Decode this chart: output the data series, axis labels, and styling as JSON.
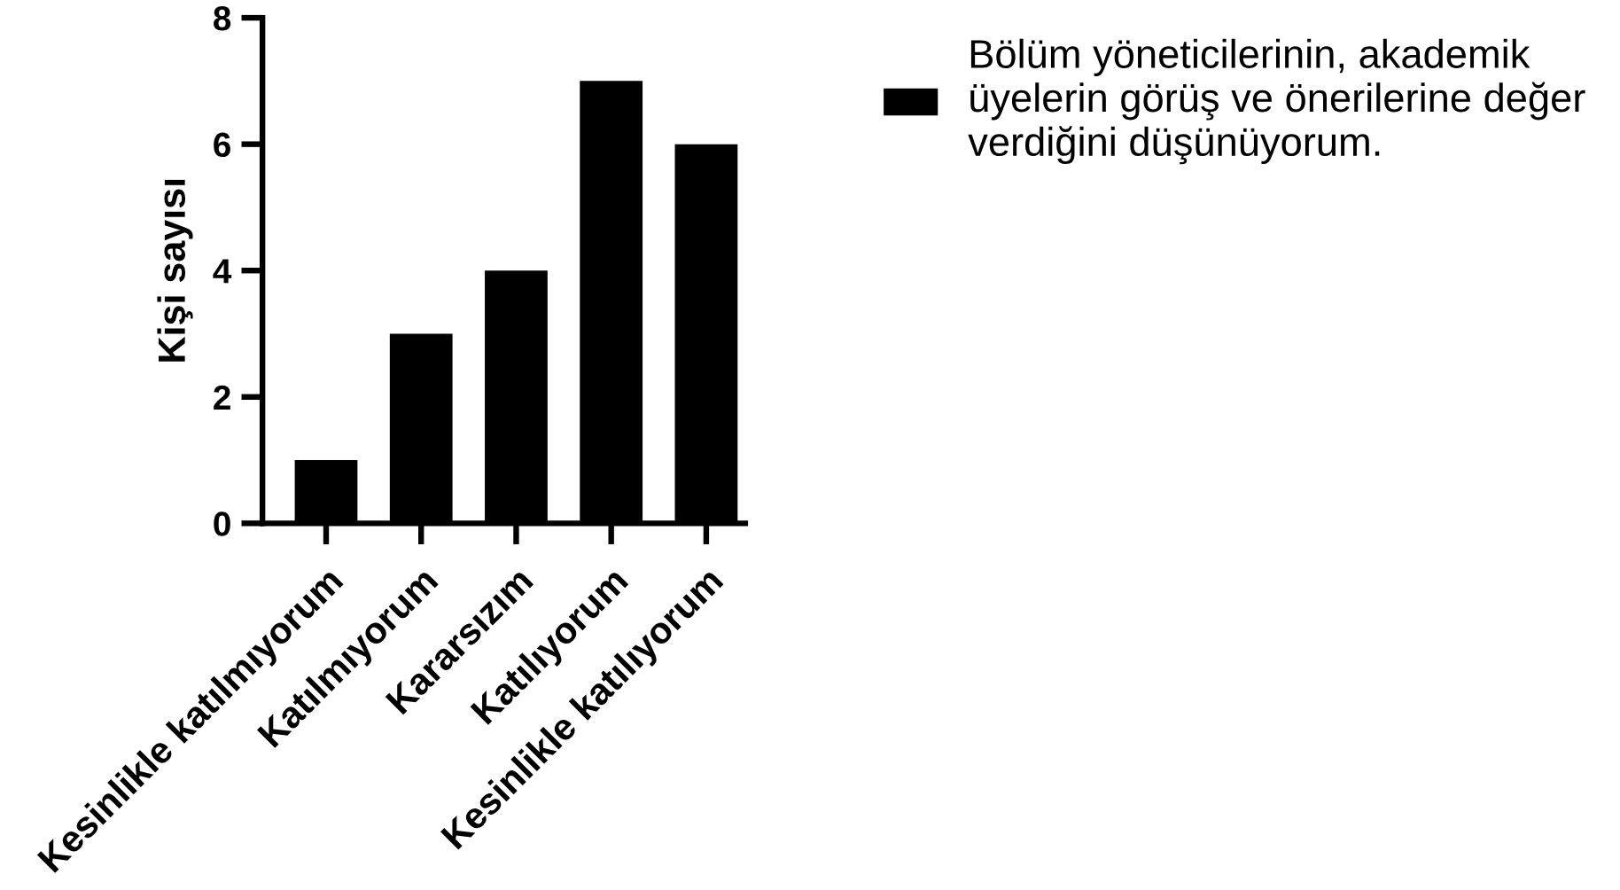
{
  "chart_data": {
    "type": "bar",
    "ylabel": "Kişi sayısı",
    "categories": [
      "Kesinlikle katılmıyorum",
      "Katılmıyorum",
      "Kararsızım",
      "Katılıyorum",
      "Kesinlikle katılıyorum"
    ],
    "series": [
      {
        "name": "Bölüm yöneticilerinin, akademik\nüyelerin görüş ve önerilerine değer\nverdiğini düşünüyorum.",
        "color": "#000000",
        "values": [
          1,
          3,
          4,
          7,
          6
        ]
      }
    ],
    "ylim": [
      0,
      8
    ],
    "yticks": [
      0,
      2,
      4,
      6,
      8
    ],
    "grid": false,
    "legend": "top right"
  }
}
